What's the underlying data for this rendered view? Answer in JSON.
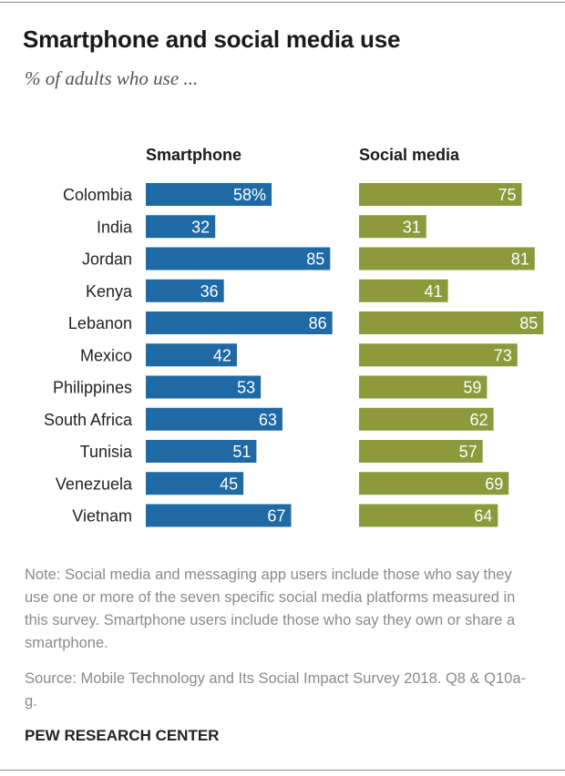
{
  "title": "Smartphone and social media use",
  "subtitle": "% of adults who use ...",
  "note": "Note: Social media and messaging app users include those who say they use one or more of the seven specific social media platforms measured in this survey. Smartphone users include those who say they own or share a smartphone.",
  "source": "Source: Mobile Technology and Its Social Impact Survey 2018. Q8 & Q10a-g.",
  "brand": "PEW RESEARCH CENTER",
  "colors": {
    "smartphone": "#1f6aa5",
    "social_media": "#8c9a3c"
  },
  "chart_data": {
    "type": "bar",
    "orientation": "horizontal",
    "categories": [
      "Colombia",
      "India",
      "Jordan",
      "Kenya",
      "Lebanon",
      "Mexico",
      "Philippines",
      "South Africa",
      "Tunisia",
      "Venezuela",
      "Vietnam"
    ],
    "series": [
      {
        "name": "Smartphone",
        "values": [
          58,
          32,
          85,
          36,
          86,
          42,
          53,
          63,
          51,
          45,
          67
        ],
        "first_label_suffix": "%"
      },
      {
        "name": "Social media",
        "values": [
          75,
          31,
          81,
          41,
          85,
          73,
          59,
          62,
          57,
          69,
          64
        ]
      }
    ],
    "xlim": [
      0,
      100
    ],
    "grid": false,
    "legend": "column headers"
  }
}
